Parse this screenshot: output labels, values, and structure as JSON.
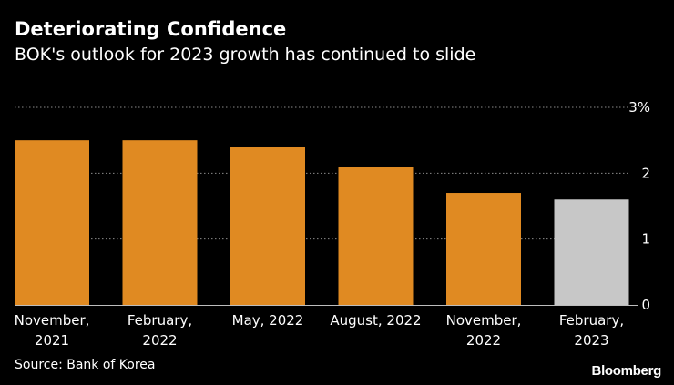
{
  "header": {
    "title": "Deteriorating Confidence",
    "subtitle": "BOK's outlook for 2023 growth has continued to slide"
  },
  "footer": {
    "source": "Source: Bank of Korea",
    "brand": "Bloomberg"
  },
  "colors": {
    "background": "#000000",
    "bar": "#E08A22",
    "bar_highlight": "#C7C7C7",
    "gridline": "#8a8a8a",
    "text": "#ffffff"
  },
  "chart_data": {
    "type": "bar",
    "title": "Deteriorating Confidence",
    "subtitle": "BOK's outlook for 2023 growth has continued to slide",
    "categories": [
      [
        "November,",
        "2021"
      ],
      [
        "February,",
        "2022"
      ],
      [
        "May, 2022"
      ],
      [
        "August, 2022"
      ],
      [
        "November,",
        "2022"
      ],
      [
        "February,",
        "2023"
      ]
    ],
    "values": [
      2.5,
      2.5,
      2.4,
      2.1,
      1.7,
      1.6
    ],
    "highlight_index": 5,
    "ylim": [
      0,
      3
    ],
    "yticks": [
      0,
      1,
      2,
      3
    ],
    "ytick_labels": [
      "0",
      "1",
      "2",
      "3%"
    ],
    "y_axis_side": "right",
    "grid": true,
    "xlabel": "",
    "ylabel": ""
  }
}
